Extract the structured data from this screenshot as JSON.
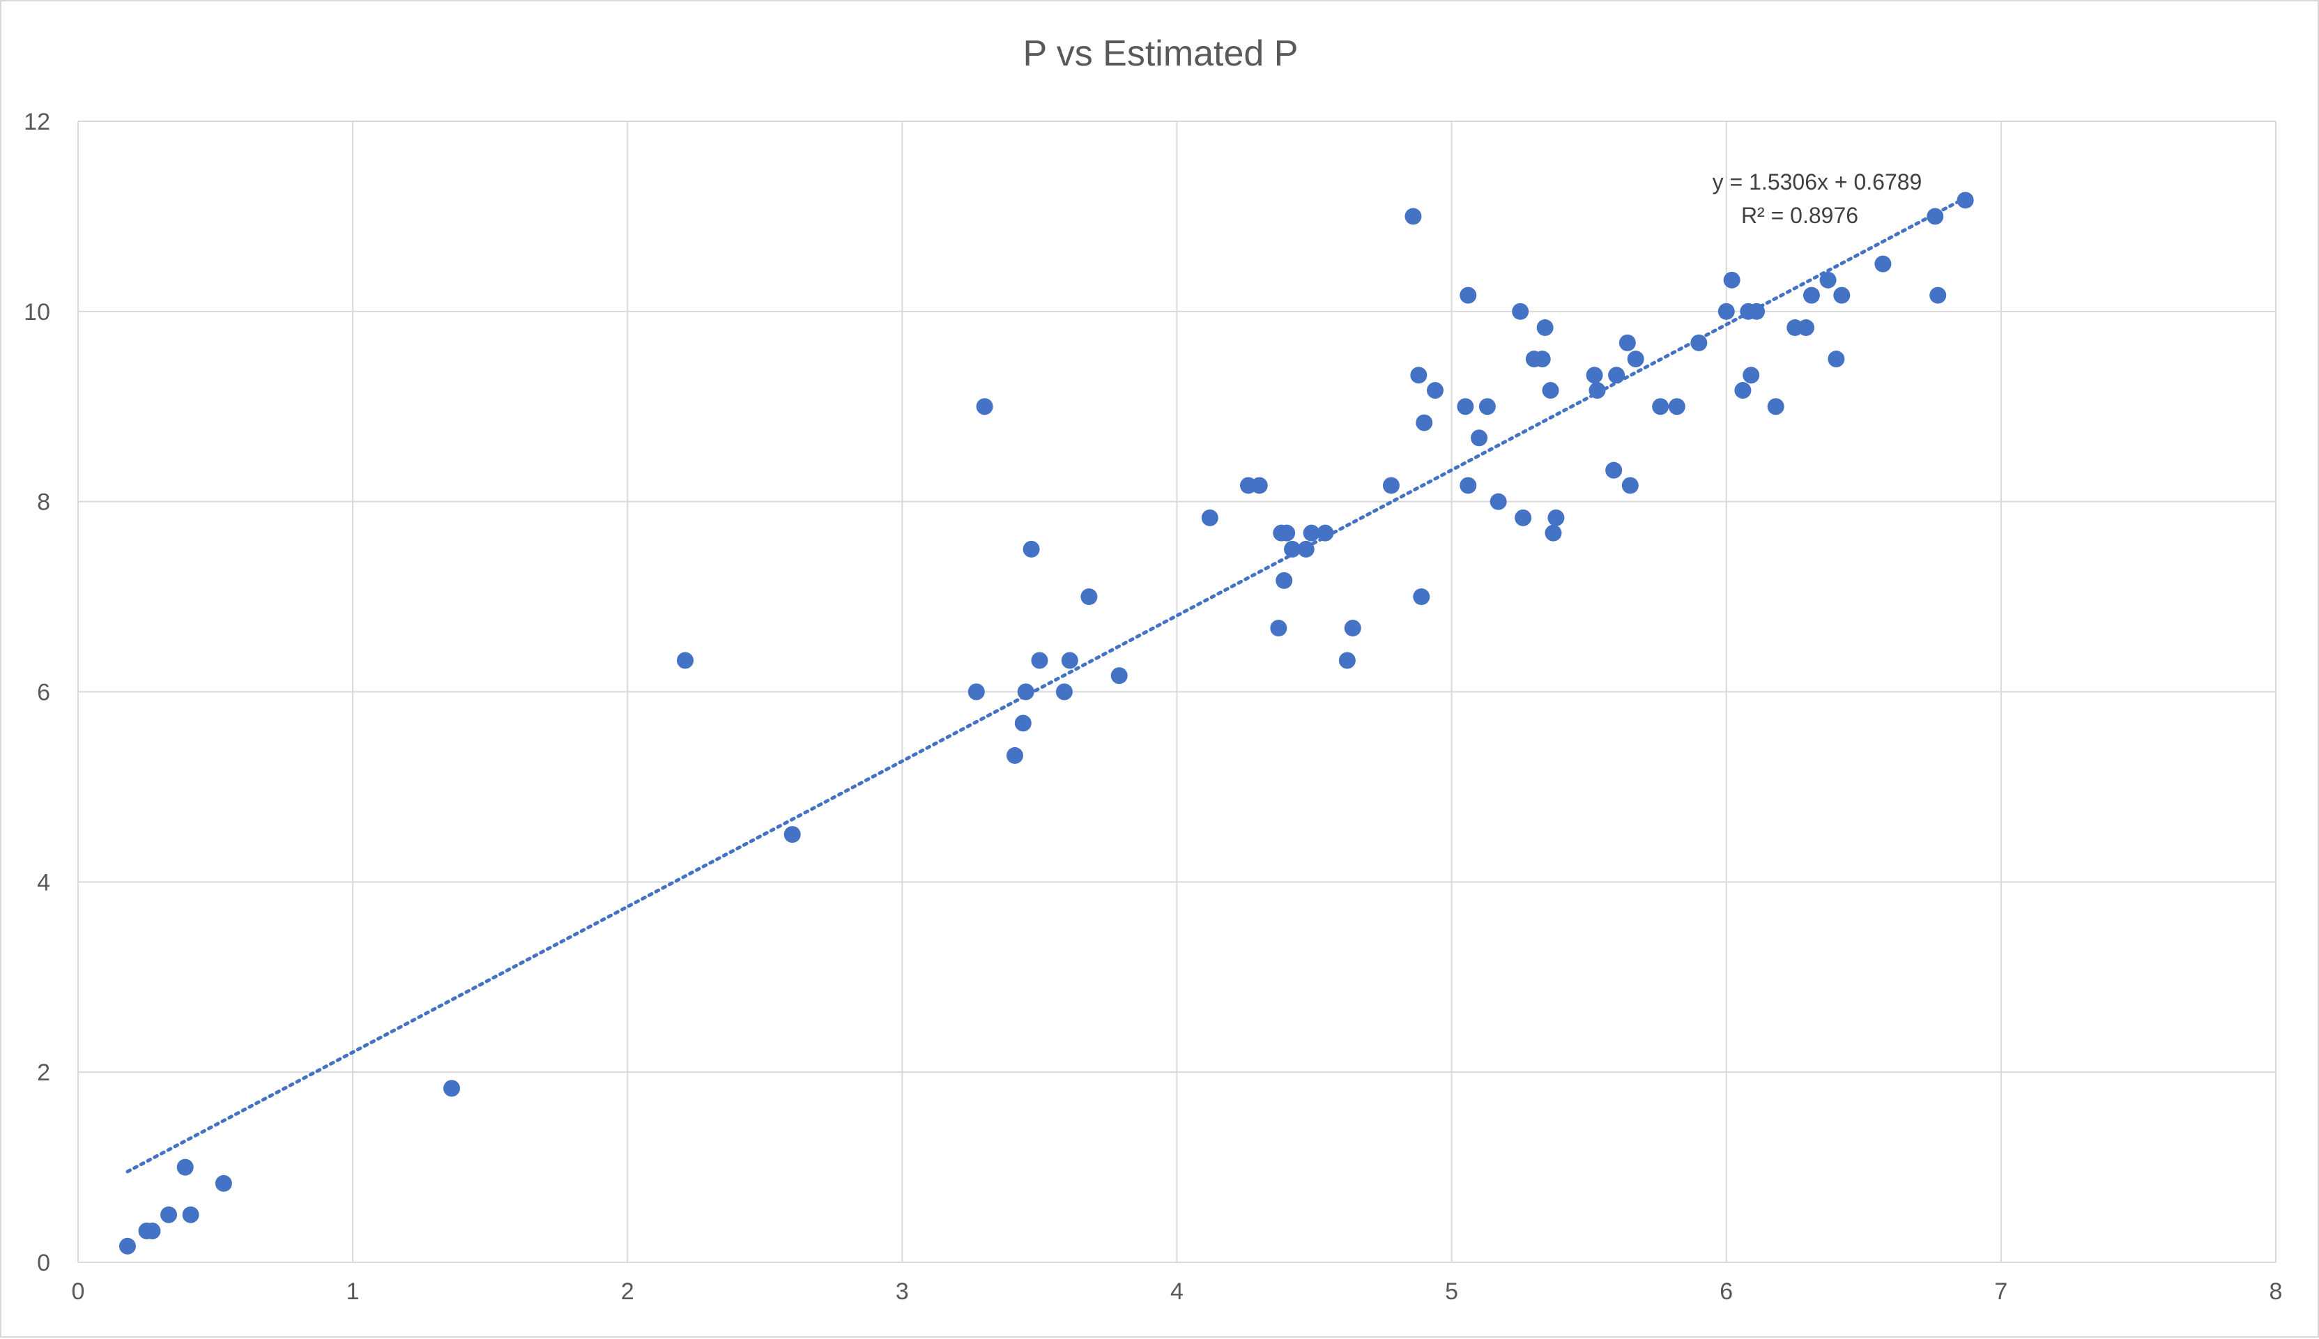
{
  "chart_data": {
    "type": "scatter",
    "title": "P vs Estimated P",
    "xlabel": "",
    "ylabel": "",
    "xlim": [
      0,
      8
    ],
    "ylim": [
      0,
      12
    ],
    "xticks": [
      "0",
      "1",
      "2",
      "3",
      "4",
      "5",
      "6",
      "7",
      "8"
    ],
    "yticks": [
      "0",
      "2",
      "4",
      "6",
      "8",
      "10",
      "12"
    ],
    "grid": true,
    "legend": "none",
    "colors": {
      "point": "#4472c4",
      "trendline": "#4472c4",
      "grid": "#d9d9d9",
      "text": "#595959"
    },
    "trendline": {
      "type": "linear",
      "slope": 1.5306,
      "intercept": 0.6789,
      "x_range": [
        0.18,
        6.87
      ],
      "style": "dotted",
      "equation_label": "y = 1.5306x + 0.6789",
      "r2_label": "R² = 0.8976"
    },
    "series": [
      {
        "points": [
          [
            0.18,
            0.17
          ],
          [
            0.25,
            0.33
          ],
          [
            0.27,
            0.33
          ],
          [
            0.33,
            0.5
          ],
          [
            0.39,
            1.0
          ],
          [
            0.41,
            0.5
          ],
          [
            0.53,
            0.83
          ],
          [
            1.36,
            1.83
          ],
          [
            2.21,
            6.33
          ],
          [
            2.6,
            4.5
          ],
          [
            3.27,
            6.0
          ],
          [
            3.3,
            9.0
          ],
          [
            3.41,
            5.33
          ],
          [
            3.44,
            5.67
          ],
          [
            3.45,
            6.0
          ],
          [
            3.47,
            7.5
          ],
          [
            3.5,
            6.33
          ],
          [
            3.59,
            6.0
          ],
          [
            3.61,
            6.33
          ],
          [
            3.68,
            7.0
          ],
          [
            3.79,
            6.17
          ],
          [
            4.12,
            7.83
          ],
          [
            4.26,
            8.17
          ],
          [
            4.3,
            8.17
          ],
          [
            4.37,
            6.67
          ],
          [
            4.38,
            7.67
          ],
          [
            4.39,
            7.17
          ],
          [
            4.4,
            7.67
          ],
          [
            4.42,
            7.5
          ],
          [
            4.47,
            7.5
          ],
          [
            4.49,
            7.67
          ],
          [
            4.54,
            7.67
          ],
          [
            4.62,
            6.33
          ],
          [
            4.64,
            6.67
          ],
          [
            4.78,
            8.17
          ],
          [
            4.86,
            11.0
          ],
          [
            4.88,
            9.33
          ],
          [
            4.89,
            7.0
          ],
          [
            4.9,
            8.83
          ],
          [
            4.94,
            9.17
          ],
          [
            5.05,
            9.0
          ],
          [
            5.06,
            10.17
          ],
          [
            5.06,
            8.17
          ],
          [
            5.1,
            8.67
          ],
          [
            5.13,
            9.0
          ],
          [
            5.17,
            8.0
          ],
          [
            5.25,
            10.0
          ],
          [
            5.26,
            7.83
          ],
          [
            5.3,
            9.5
          ],
          [
            5.33,
            9.5
          ],
          [
            5.34,
            9.83
          ],
          [
            5.36,
            9.17
          ],
          [
            5.37,
            7.67
          ],
          [
            5.38,
            7.83
          ],
          [
            5.52,
            9.33
          ],
          [
            5.53,
            9.17
          ],
          [
            5.59,
            8.33
          ],
          [
            5.6,
            9.33
          ],
          [
            5.64,
            9.67
          ],
          [
            5.65,
            8.17
          ],
          [
            5.67,
            9.5
          ],
          [
            5.76,
            9.0
          ],
          [
            5.82,
            9.0
          ],
          [
            5.9,
            9.67
          ],
          [
            6.0,
            10.0
          ],
          [
            6.02,
            10.33
          ],
          [
            6.06,
            9.17
          ],
          [
            6.08,
            10.0
          ],
          [
            6.09,
            9.33
          ],
          [
            6.11,
            10.0
          ],
          [
            6.18,
            9.0
          ],
          [
            6.25,
            9.83
          ],
          [
            6.29,
            9.83
          ],
          [
            6.31,
            10.17
          ],
          [
            6.37,
            10.33
          ],
          [
            6.4,
            9.5
          ],
          [
            6.42,
            10.17
          ],
          [
            6.57,
            10.5
          ],
          [
            6.76,
            11.0
          ],
          [
            6.77,
            10.17
          ],
          [
            6.87,
            11.17
          ]
        ]
      }
    ]
  }
}
